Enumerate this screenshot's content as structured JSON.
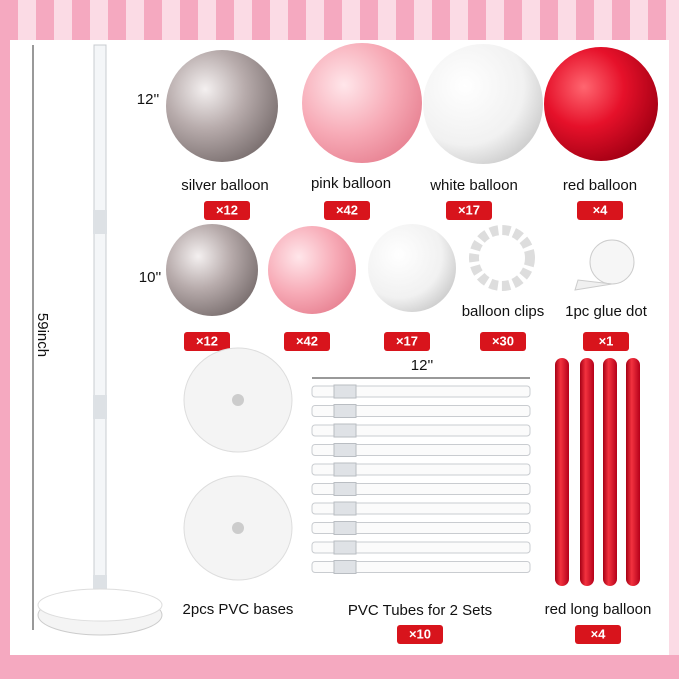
{
  "stand_height": "59inch",
  "row1": {
    "size": "12''",
    "items": [
      {
        "label": "silver balloon",
        "count": "×12"
      },
      {
        "label": "pink balloon",
        "count": "×42"
      },
      {
        "label": "white balloon",
        "count": "×17"
      },
      {
        "label": "red balloon",
        "count": "×4"
      }
    ]
  },
  "row2": {
    "size": "10''",
    "items": [
      {
        "count": "×12"
      },
      {
        "count": "×42"
      },
      {
        "count": "×17"
      },
      {
        "label": "balloon clips",
        "count": "×30"
      },
      {
        "label": "1pc glue dot",
        "count": "×1"
      }
    ]
  },
  "bases": {
    "label": "2pcs PVC bases"
  },
  "tubes": {
    "length": "12''",
    "label": "PVC Tubes for 2 Sets",
    "count": "×10"
  },
  "long_balloons": {
    "label": "red long balloon",
    "count": "×4"
  }
}
